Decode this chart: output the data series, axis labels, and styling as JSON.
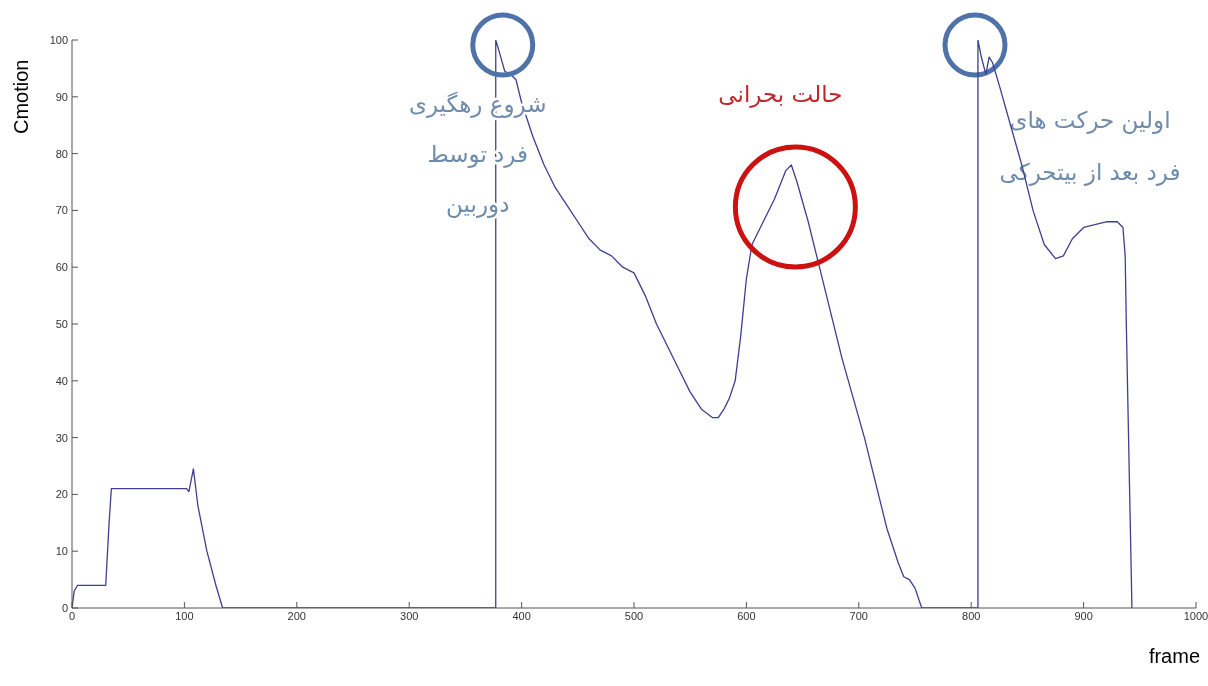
{
  "chart_data": {
    "type": "line",
    "xlabel": "frame",
    "ylabel": "Cmotion",
    "xlim": [
      0,
      1000
    ],
    "ylim": [
      0,
      100
    ],
    "xticks": [
      0,
      100,
      200,
      300,
      400,
      500,
      600,
      700,
      800,
      900,
      1000
    ],
    "yticks": [
      0,
      10,
      20,
      30,
      40,
      50,
      60,
      70,
      80,
      90,
      100
    ],
    "grid": false,
    "legend": false,
    "marker": "none",
    "line_style": "solid",
    "series": [
      {
        "color": "#3f3f8f",
        "x": [
          0,
          2,
          5,
          30,
          33,
          35,
          102,
          104,
          108,
          112,
          120,
          128,
          134,
          377,
          377,
          380,
          385,
          390,
          395,
          400,
          410,
          420,
          430,
          440,
          450,
          460,
          470,
          480,
          490,
          500,
          510,
          520,
          530,
          540,
          550,
          560,
          570,
          575,
          580,
          585,
          590,
          595,
          600,
          605,
          615,
          625,
          635,
          640,
          645,
          655,
          665,
          675,
          685,
          695,
          705,
          715,
          725,
          735,
          740,
          745,
          750,
          756,
          806,
          806,
          809,
          813,
          816,
          819,
          825,
          835,
          845,
          855,
          865,
          875,
          882,
          890,
          900,
          910,
          920,
          930,
          935,
          937,
          938,
          943
        ],
        "values": [
          0,
          3,
          4,
          4,
          15,
          21,
          21,
          20.5,
          24.5,
          18,
          10,
          4,
          0,
          0,
          100,
          98,
          94.5,
          94,
          93,
          89,
          83,
          78,
          74,
          71,
          68,
          65,
          63,
          62,
          60,
          59,
          55,
          50,
          46,
          42,
          38,
          35,
          33.5,
          33.5,
          35,
          37,
          40,
          48,
          58,
          64,
          68,
          72,
          77,
          78,
          75,
          68,
          60,
          52,
          44,
          37,
          30,
          22,
          14,
          8,
          5.5,
          5,
          3.5,
          0,
          0,
          100,
          97,
          94,
          97,
          96,
          92,
          85,
          78,
          70,
          64,
          61.5,
          62,
          65,
          67,
          67.5,
          68,
          68,
          67,
          62,
          50,
          0
        ]
      }
    ],
    "annotations": [
      {
        "text": "شروع رهگیری\nفرد توسط\nدوربین",
        "x": 377,
        "y": 100
      },
      {
        "text": "حالت بحرانی",
        "x": 640,
        "y": 78
      },
      "اولین حرکت های\nفرد بعد از بیتحرکی"
    ]
  }
}
